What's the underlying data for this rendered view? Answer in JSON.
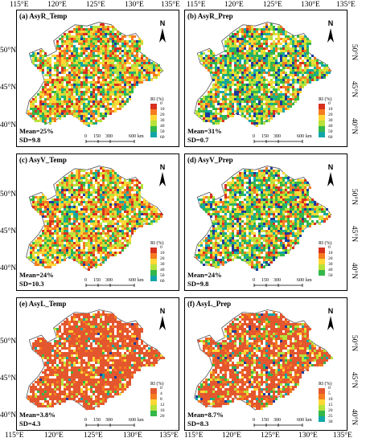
{
  "axes": {
    "top_ticks": [
      "115°E",
      "120°E",
      "125°E",
      "130°E",
      "135°E"
    ],
    "bottom_ticks": [
      "115°E",
      "120°E",
      "125°E",
      "130°E",
      "135°E"
    ],
    "left_ticks_top": [
      "50°N",
      "45°N",
      "40°N"
    ],
    "left_ticks_mid": [
      "50°N",
      "45°N",
      "40°N"
    ],
    "left_ticks_bottom": [
      "50°N",
      "45°N",
      "40°N"
    ],
    "right_ticks_top": [
      "50°N",
      "45°N",
      "40°N"
    ],
    "right_ticks_mid": [
      "50°N",
      "45°N",
      "40°N"
    ],
    "right_ticks_bottom": [
      "50°N",
      "45°N",
      "40°N"
    ]
  },
  "north_label": "N",
  "scalebar": {
    "ticks": [
      "0",
      "150",
      "300",
      "600"
    ],
    "unit": "km"
  },
  "panels": [
    {
      "id": "a",
      "title": "(a) AsyR_Temp",
      "mean": "Mean=25%",
      "sd": "SD=9.8",
      "legend_title": "RI (%)",
      "legend_values": [
        "0",
        "10",
        "20",
        "30",
        "40",
        "50",
        "60"
      ],
      "colors": [
        "#d7301f",
        "#f57c20",
        "#fdd835",
        "#b6e23a",
        "#33b74a",
        "#12a6a8",
        "#1a3b9c"
      ],
      "dist": [
        0.12,
        0.22,
        0.22,
        0.18,
        0.14,
        0.08,
        0.04
      ]
    },
    {
      "id": "b",
      "title": "(b) AsyR_Prep",
      "mean": "Mean=31%",
      "sd": "SD=0.7",
      "legend_title": "RI (%)",
      "legend_values": [
        "0",
        "10",
        "20",
        "30",
        "40",
        "50",
        "60"
      ],
      "colors": [
        "#d7301f",
        "#f57c20",
        "#fdd835",
        "#b6e23a",
        "#33b74a",
        "#12a6a8",
        "#1a3b9c"
      ],
      "dist": [
        0.06,
        0.12,
        0.18,
        0.18,
        0.26,
        0.12,
        0.08
      ]
    },
    {
      "id": "c",
      "title": "(c) AsyV_Temp",
      "mean": "Mean=24%",
      "sd": "SD=10.3",
      "legend_title": "RI (%)",
      "legend_values": [
        "0",
        "10",
        "20",
        "30",
        "40",
        "50",
        "60"
      ],
      "colors": [
        "#d7301f",
        "#f57c20",
        "#fdd835",
        "#b6e23a",
        "#33b74a",
        "#12a6a8",
        "#1a3b9c"
      ],
      "dist": [
        0.12,
        0.22,
        0.24,
        0.18,
        0.14,
        0.07,
        0.03
      ]
    },
    {
      "id": "d",
      "title": "(d) AsyV_Prep",
      "mean": "Mean=24%",
      "sd": "SD=9.8",
      "legend_title": "RI (%)",
      "legend_values": [
        "0",
        "10",
        "20",
        "30",
        "40",
        "50"
      ],
      "colors": [
        "#d7301f",
        "#f57c20",
        "#fdd835",
        "#b6e23a",
        "#33b74a",
        "#12a6a8",
        "#1a3b9c"
      ],
      "dist": [
        0.08,
        0.14,
        0.18,
        0.18,
        0.24,
        0.1,
        0.08
      ]
    },
    {
      "id": "e",
      "title": "(e) AsyL_Temp",
      "mean": "Mean=3.8%",
      "sd": "SD=4.3",
      "legend_title": "RI (%)",
      "legend_values": [
        "0",
        "4",
        "8",
        "12",
        "16",
        "20"
      ],
      "colors": [
        "#e4572e",
        "#f57c20",
        "#fdd835",
        "#b6e23a",
        "#33b74a",
        "#12a6a8",
        "#1a3b9c"
      ],
      "dist": [
        0.78,
        0.08,
        0.05,
        0.03,
        0.03,
        0.02,
        0.01
      ]
    },
    {
      "id": "f",
      "title": "(f) AsyL_Prep",
      "mean": "Mean=8.7%",
      "sd": "SD=8.3",
      "legend_title": "RI (%)",
      "legend_values": [
        "0",
        "5",
        "10",
        "15",
        "20",
        "25",
        "30"
      ],
      "colors": [
        "#e4572e",
        "#f57c20",
        "#fdd835",
        "#b6e23a",
        "#33b74a",
        "#12a6a8",
        "#1a3b9c"
      ],
      "dist": [
        0.6,
        0.12,
        0.08,
        0.07,
        0.06,
        0.04,
        0.03
      ]
    }
  ]
}
